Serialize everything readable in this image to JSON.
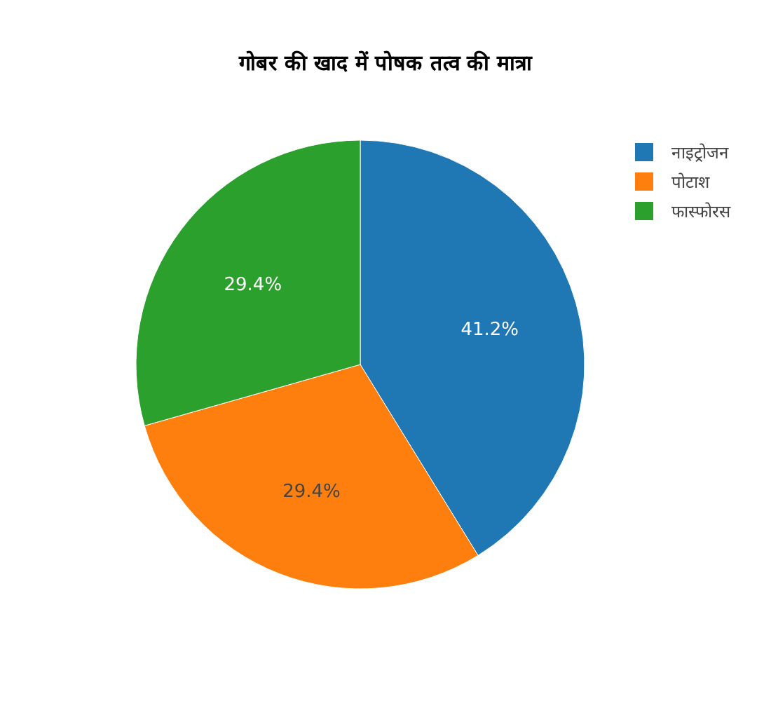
{
  "chart_data": {
    "type": "pie",
    "title": "गोबर की खाद में पोषक तत्व की मात्रा",
    "categories": [
      "नाइट्रोजन",
      "पोटाश",
      "फास्फोरस"
    ],
    "values": [
      41.2,
      29.4,
      29.4
    ],
    "value_labels": [
      "41.2%",
      "29.4%",
      "29.4%"
    ],
    "colors": [
      "#1f77b4",
      "#ff7f0e",
      "#2ca02c"
    ],
    "legend": "top right"
  }
}
